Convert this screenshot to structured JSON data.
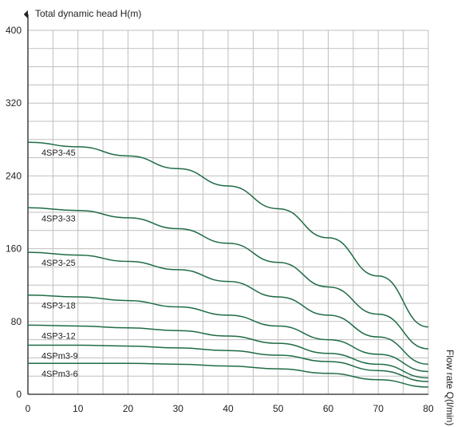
{
  "chart_data": {
    "type": "line",
    "title": "",
    "xlabel": "Flow rate Q(l/min)",
    "ylabel": "Total dynamic head H(m)",
    "xlim": [
      0,
      80
    ],
    "ylim": [
      0,
      400
    ],
    "x_ticks": [
      0,
      10,
      20,
      30,
      40,
      50,
      60,
      70,
      80
    ],
    "y_ticks": [
      0,
      80,
      160,
      240,
      320,
      400
    ],
    "x_ticks_labels": [
      "0",
      "10",
      "20",
      "30",
      "40",
      "50",
      "60",
      "70",
      "80"
    ],
    "y_ticks_labels": [
      "0",
      "80",
      "160",
      "240",
      "320",
      "400"
    ],
    "grid": true,
    "line_color": "#1f6b45",
    "grid_color": "#bfbfbf",
    "series": [
      {
        "name": "4SP3-45",
        "x": [
          0,
          10,
          20,
          30,
          40,
          50,
          60,
          70,
          80
        ],
        "values": [
          277,
          272,
          262,
          248,
          229,
          204,
          172,
          130,
          74
        ]
      },
      {
        "name": "4SP3-33",
        "x": [
          0,
          10,
          20,
          30,
          40,
          50,
          60,
          70,
          80
        ],
        "values": [
          205,
          202,
          194,
          182,
          166,
          145,
          118,
          88,
          50
        ]
      },
      {
        "name": "4SP3-25",
        "x": [
          0,
          10,
          20,
          30,
          40,
          50,
          60,
          70,
          80
        ],
        "values": [
          156,
          153,
          146,
          137,
          124,
          107,
          87,
          63,
          33
        ]
      },
      {
        "name": "4SP3-18",
        "x": [
          0,
          10,
          20,
          30,
          40,
          50,
          60,
          70,
          80
        ],
        "values": [
          109,
          107,
          103,
          96,
          87,
          75,
          60,
          44,
          25
        ]
      },
      {
        "name": "4SP3-12",
        "x": [
          0,
          10,
          20,
          30,
          40,
          50,
          60,
          70,
          80
        ],
        "values": [
          76,
          75,
          73,
          70,
          64,
          56,
          45,
          33,
          18
        ]
      },
      {
        "name": "4SPm3-9",
        "x": [
          0,
          10,
          20,
          30,
          40,
          50,
          60,
          70,
          80
        ],
        "values": [
          54,
          54,
          53,
          51,
          48,
          43,
          36,
          26,
          14
        ]
      },
      {
        "name": "4SPm3-6",
        "x": [
          0,
          10,
          20,
          30,
          40,
          50,
          60,
          70,
          80
        ],
        "values": [
          34,
          34,
          34,
          33,
          31,
          28,
          23,
          16,
          8
        ]
      }
    ]
  }
}
